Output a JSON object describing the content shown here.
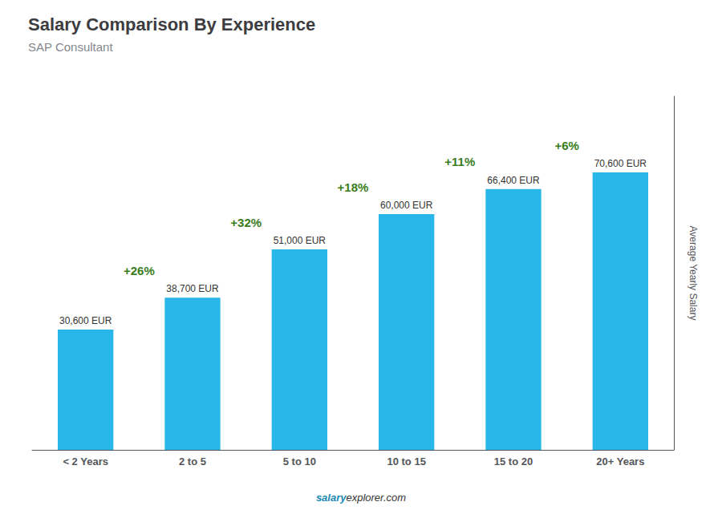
{
  "chart_data": {
    "type": "bar",
    "title": "Salary Comparison By Experience",
    "subtitle": "SAP Consultant",
    "categories": [
      "< 2 Years",
      "2 to 5",
      "5 to 10",
      "10 to 15",
      "15 to 20",
      "20+ Years"
    ],
    "values": [
      30600,
      38700,
      51000,
      60000,
      66400,
      70600
    ],
    "value_labels": [
      "30,600 EUR",
      "38,700 EUR",
      "51,000 EUR",
      "60,000 EUR",
      "66,400 EUR",
      "70,600 EUR"
    ],
    "data_labels": true,
    "color": "#29b6e8",
    "ylabel": "Average Yearly Salary",
    "ylim": [
      0,
      90000
    ],
    "yticks": [],
    "grid": false,
    "tick_labels": "x",
    "annotations": [
      "+26%",
      "+32%",
      "+18%",
      "+11%",
      "+6%"
    ],
    "watermark": [
      "salary",
      "explorer.com"
    ]
  }
}
